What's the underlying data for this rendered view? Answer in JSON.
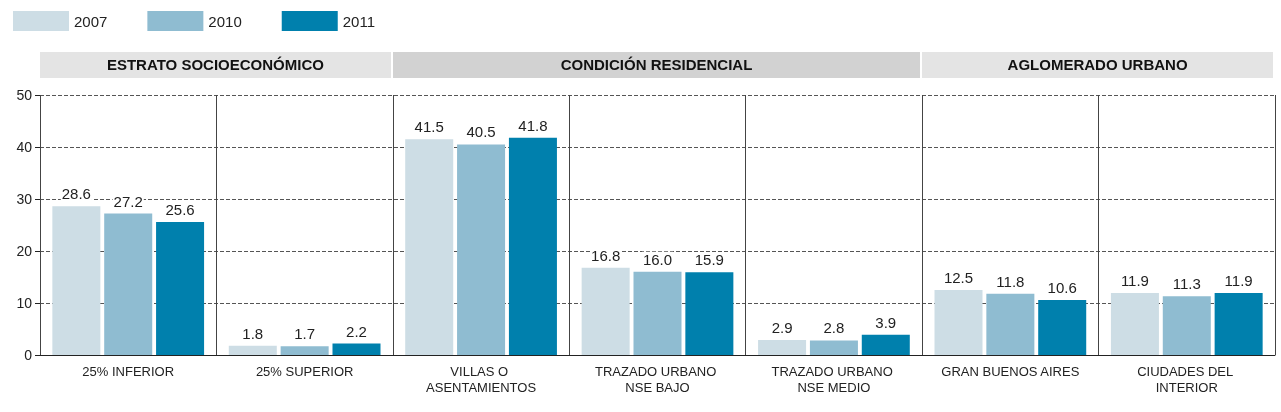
{
  "chart_data": {
    "type": "bar",
    "categories": [
      "25% INFERIOR",
      "25% SUPERIOR",
      "VILLAS O ASENTAMIENTOS",
      "TRAZADO URBANO NSE BAJO",
      "TRAZADO URBANO NSE MEDIO",
      "GRAN BUENOS AIRES",
      "CIUDADES DEL INTERIOR"
    ],
    "series": [
      {
        "name": "2007",
        "color": "#cddde5",
        "values": [
          28.6,
          1.8,
          41.5,
          16.8,
          2.9,
          12.5,
          11.9
        ]
      },
      {
        "name": "2010",
        "color": "#8fbcd1",
        "values": [
          27.2,
          1.7,
          40.5,
          16.0,
          2.8,
          11.8,
          11.3
        ],
        "value_labels": [
          "27.2",
          "1.7",
          "40.5",
          "16.0",
          "2.8",
          "11.8",
          "11.3"
        ]
      },
      {
        "name": "2011",
        "color": "#0080ad",
        "values": [
          25.6,
          2.2,
          41.8,
          15.9,
          3.9,
          10.6,
          11.9
        ]
      }
    ],
    "ylim": [
      0,
      50
    ],
    "yticks": [
      0,
      10,
      20,
      30,
      40,
      50
    ],
    "grid": "y",
    "legend": "top left",
    "data_labels": true,
    "annotations": [
      "ESTRATO SOCIOECONÓMICO",
      "CONDICIÓN RESIDENCIAL",
      "AGLOMERADO URBANO"
    ]
  }
}
